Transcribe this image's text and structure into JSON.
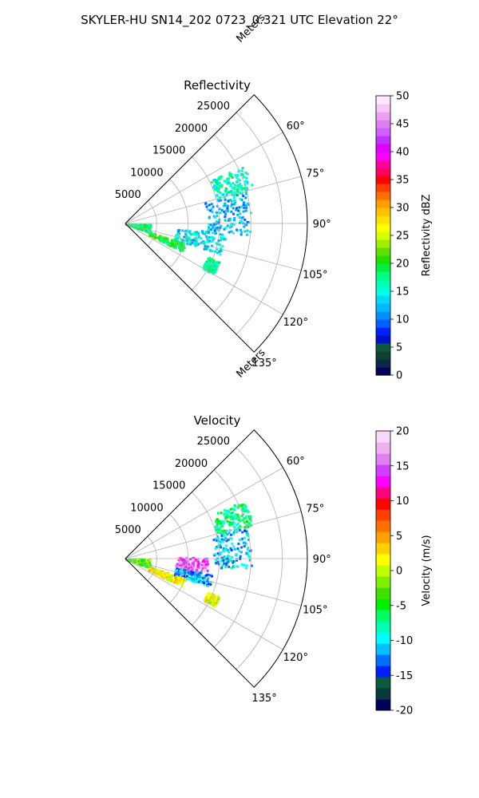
{
  "figure": {
    "title": "SKYLER-HU  SN14_202  0723_0.321 UTC Elevation 22°"
  },
  "chart_data": [
    {
      "type": "polar-sector",
      "title": "Reflectivity",
      "range_label": "Meters",
      "range_ticks": [
        "5000",
        "10000",
        "15000",
        "20000",
        "25000"
      ],
      "rmax": 29000,
      "azimuth_range_deg": [
        45,
        135
      ],
      "azimuth_ticks": [
        "60°",
        "75°",
        "90°",
        "105°",
        "120°",
        "135°"
      ],
      "colorbar": {
        "label": "Reflectivity dBZ",
        "min": 0,
        "max": 50,
        "ticks": [
          "0",
          "5",
          "10",
          "15",
          "20",
          "25",
          "30",
          "35",
          "40",
          "45",
          "50"
        ]
      },
      "echo_regions": [
        {
          "az": [
            63,
            75
          ],
          "r": [
            15000,
            21000
          ],
          "value": 16
        },
        {
          "az": [
            75,
            95
          ],
          "r": [
            13000,
            20000
          ],
          "value": 12
        },
        {
          "az": [
            95,
            108
          ],
          "r": [
            8000,
            16000
          ],
          "value": 14
        },
        {
          "az": [
            108,
            116
          ],
          "r": [
            4000,
            10000
          ],
          "value": 20
        },
        {
          "az": [
            112,
            120
          ],
          "r": [
            14000,
            16000
          ],
          "value": 17
        },
        {
          "az": [
            90,
            110
          ],
          "r": [
            0,
            4000
          ],
          "value": 18
        }
      ]
    },
    {
      "type": "polar-sector",
      "title": "Velocity",
      "range_label": "Meters",
      "range_ticks": [
        "5000",
        "10000",
        "15000",
        "20000",
        "25000"
      ],
      "rmax": 29000,
      "azimuth_range_deg": [
        45,
        135
      ],
      "azimuth_ticks": [
        "60°",
        "75°",
        "90°",
        "105°",
        "120°",
        "135°"
      ],
      "colorbar": {
        "label": "Velocity (m/s)",
        "min": -20,
        "max": 20,
        "ticks": [
          "-20",
          "-15",
          "-10",
          "-5",
          "0",
          "5",
          "10",
          "15",
          "20"
        ]
      },
      "echo_regions": [
        {
          "az": [
            63,
            75
          ],
          "r": [
            15000,
            21000
          ],
          "value": -7
        },
        {
          "az": [
            75,
            95
          ],
          "r": [
            14000,
            20000
          ],
          "value": -11
        },
        {
          "az": [
            88,
            100
          ],
          "r": [
            8000,
            13000
          ],
          "value": 15
        },
        {
          "az": [
            100,
            108
          ],
          "r": [
            8000,
            14000
          ],
          "value": -12
        },
        {
          "az": [
            108,
            116
          ],
          "r": [
            4000,
            10000
          ],
          "value": 2
        },
        {
          "az": [
            112,
            118
          ],
          "r": [
            14000,
            16000
          ],
          "value": 1
        },
        {
          "az": [
            90,
            110
          ],
          "r": [
            0,
            4000
          ],
          "value": -3
        }
      ]
    }
  ],
  "colors": {
    "reflectivity_scale": [
      "#00005a",
      "#0a2a4a",
      "#0f4030",
      "#0d5a3a",
      "#0010c8",
      "#0020ff",
      "#0060ff",
      "#0090ff",
      "#00b8ff",
      "#00d8ff",
      "#00ffe0",
      "#00ffb0",
      "#00ff80",
      "#00f040",
      "#20e000",
      "#60e000",
      "#a0f000",
      "#d8ff00",
      "#ffff00",
      "#ffe000",
      "#ffc000",
      "#ffa000",
      "#ff7000",
      "#ff4000",
      "#ff0000",
      "#ff0060",
      "#ff00a0",
      "#ff00ff",
      "#e000ff",
      "#c030ff",
      "#d060ff",
      "#e080f0",
      "#f0a0f0",
      "#f8c8f8",
      "#ffe8ff"
    ],
    "velocity_scale": [
      "#00005a",
      "#0a3a40",
      "#0d5a3a",
      "#0020ff",
      "#0070ff",
      "#00c0ff",
      "#00ffff",
      "#00ffb0",
      "#00ff60",
      "#00f000",
      "#40e000",
      "#80f000",
      "#c0ff00",
      "#ffff00",
      "#ffd000",
      "#ffa000",
      "#ff7000",
      "#ff4000",
      "#ff0000",
      "#ff0080",
      "#ff00ff",
      "#d040ff",
      "#e080f0",
      "#f0b0f0",
      "#f8d8f8"
    ]
  }
}
